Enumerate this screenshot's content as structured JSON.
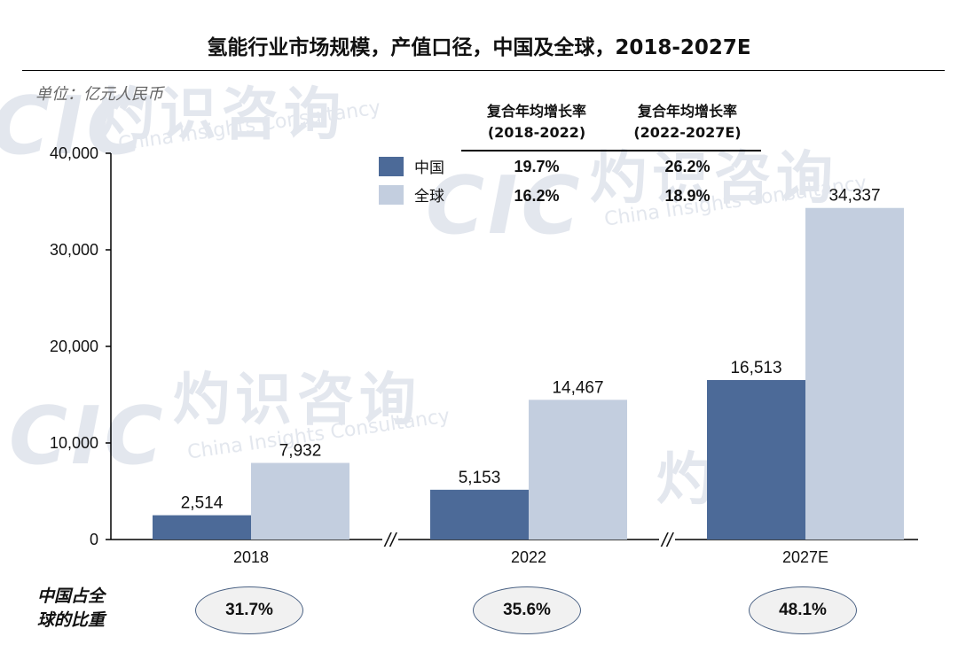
{
  "title": "氢能行业市场规模，产值口径，中国及全球，2018-2027E",
  "unit": "单位：亿元人民币",
  "watermark": {
    "cn": "灼识咨询",
    "en": "China Insights Consultancy",
    "logo": "CIC"
  },
  "legend": [
    {
      "name": "中国",
      "color": "#4c6a98"
    },
    {
      "name": "全球",
      "color": "#c3cedf"
    }
  ],
  "cagr": {
    "headers": [
      {
        "line1": "复合年均增长率",
        "line2": "(2018-2022)"
      },
      {
        "line1": "复合年均增长率",
        "line2": "(2022-2027E)"
      }
    ],
    "rows": [
      {
        "values": [
          "19.7%",
          "26.2%"
        ]
      },
      {
        "values": [
          "16.2%",
          "18.9%"
        ]
      }
    ]
  },
  "chart_data": {
    "type": "bar",
    "categories": [
      "2018",
      "2022",
      "2027E"
    ],
    "series": [
      {
        "name": "中国",
        "values": [
          2514,
          5153,
          16513
        ],
        "labels": [
          "2,514",
          "5,153",
          "16,513"
        ],
        "color": "#4c6a98"
      },
      {
        "name": "全球",
        "values": [
          7932,
          14467,
          34337
        ],
        "labels": [
          "7,932",
          "14,467",
          "34,337"
        ],
        "color": "#c3cedf"
      }
    ],
    "ylim": [
      0,
      40000
    ],
    "yticks": [
      0,
      10000,
      20000,
      30000,
      40000
    ],
    "ytick_labels": [
      "0",
      "10,000",
      "20,000",
      "30,000",
      "40,000"
    ],
    "axis_break_marker": "//",
    "grid": false
  },
  "share": {
    "label_line1": "中国占全",
    "label_line2": "球的比重",
    "values": [
      "31.7%",
      "35.6%",
      "48.1%"
    ]
  }
}
